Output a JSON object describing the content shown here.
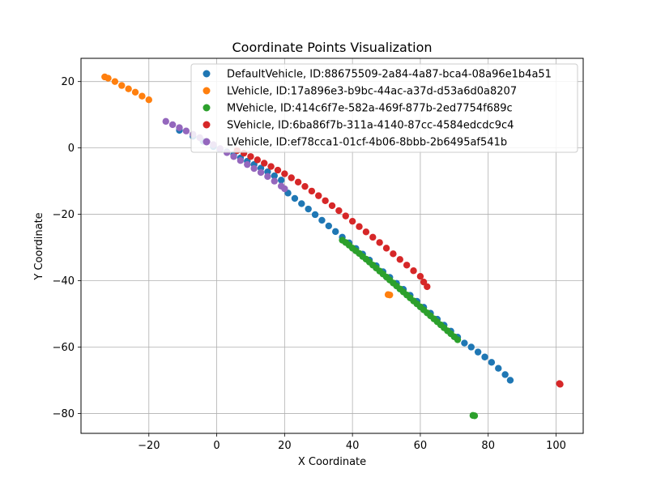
{
  "chart_data": {
    "type": "scatter",
    "title": "Coordinate Points Visualization",
    "xlabel": "X Coordinate",
    "ylabel": "Y Coordinate",
    "xlim": [
      -40,
      108
    ],
    "ylim": [
      -86,
      27
    ],
    "xticks": [
      -20,
      0,
      20,
      40,
      60,
      80,
      100
    ],
    "yticks": [
      20,
      0,
      -20,
      -40,
      -60,
      -80
    ],
    "grid": true,
    "legend_position": "top-right",
    "series": [
      {
        "name": "DefaultVehicle, ID:88675509-2a84-4a87-bca4-08a96e1b4a51",
        "color": "#1f77b4",
        "points": [
          [
            -11,
            5.3
          ],
          [
            -7,
            3.5
          ],
          [
            -4,
            2.0
          ],
          [
            -1,
            0.4
          ],
          [
            1,
            -0.4
          ],
          [
            3,
            -1.2
          ],
          [
            5,
            -2.0
          ],
          [
            7,
            -3.0
          ],
          [
            9,
            -4.0
          ],
          [
            11,
            -5.0
          ],
          [
            13,
            -6.1
          ],
          [
            15,
            -7.2
          ],
          [
            17,
            -8.4
          ],
          [
            19,
            -9.7
          ],
          [
            21,
            -13.6
          ],
          [
            23,
            -15.2
          ],
          [
            25,
            -16.8
          ],
          [
            27,
            -18.4
          ],
          [
            29,
            -20.1
          ],
          [
            31,
            -21.8
          ],
          [
            33,
            -23.5
          ],
          [
            35,
            -25.2
          ],
          [
            37,
            -26.9
          ],
          [
            39,
            -28.6
          ],
          [
            41,
            -30.3
          ],
          [
            43,
            -32.0
          ],
          [
            45,
            -33.8
          ],
          [
            47,
            -35.5
          ],
          [
            49,
            -37.3
          ],
          [
            51,
            -39.0
          ],
          [
            53,
            -40.8
          ],
          [
            55,
            -42.6
          ],
          [
            57,
            -44.4
          ],
          [
            59,
            -46.2
          ],
          [
            61,
            -48.0
          ],
          [
            63,
            -49.8
          ],
          [
            65,
            -51.6
          ],
          [
            67,
            -53.4
          ],
          [
            69,
            -55.2
          ],
          [
            71,
            -57.0
          ],
          [
            73,
            -58.8
          ],
          [
            75,
            -60.0
          ],
          [
            77,
            -61.5
          ],
          [
            79,
            -63.0
          ],
          [
            81,
            -64.6
          ],
          [
            83,
            -66.4
          ],
          [
            85,
            -68.3
          ],
          [
            86.5,
            -70.0
          ]
        ]
      },
      {
        "name": "LVehicle, ID:17a896e3-b9bc-44ac-a37d-d53a6d0a8207",
        "color": "#ff7f0e",
        "points": [
          [
            -33,
            21.4
          ],
          [
            -32,
            21.0
          ],
          [
            -30,
            20.0
          ],
          [
            -28,
            18.8
          ],
          [
            -26,
            17.8
          ],
          [
            -24,
            16.8
          ],
          [
            -22,
            15.6
          ],
          [
            -20,
            14.5
          ],
          [
            50.5,
            -44.2
          ],
          [
            51,
            -44.3
          ]
        ]
      },
      {
        "name": "MVehicle, ID:414c6f7e-582a-469f-877b-2ed7754f689c",
        "color": "#2ca02c",
        "points": [
          [
            37,
            -27.8
          ],
          [
            38,
            -28.5
          ],
          [
            39,
            -29.3
          ],
          [
            40,
            -30.2
          ],
          [
            41,
            -31.0
          ],
          [
            42,
            -31.8
          ],
          [
            43,
            -32.7
          ],
          [
            44,
            -33.5
          ],
          [
            45,
            -34.4
          ],
          [
            46,
            -35.3
          ],
          [
            47,
            -36.2
          ],
          [
            48,
            -37.1
          ],
          [
            49,
            -38.0
          ],
          [
            50,
            -38.9
          ],
          [
            51,
            -39.8
          ],
          [
            52,
            -40.7
          ],
          [
            53,
            -41.6
          ],
          [
            54,
            -42.5
          ],
          [
            55,
            -43.4
          ],
          [
            56,
            -44.3
          ],
          [
            57,
            -45.2
          ],
          [
            58,
            -46.1
          ],
          [
            59,
            -47.0
          ],
          [
            60,
            -47.9
          ],
          [
            61,
            -48.8
          ],
          [
            62,
            -49.7
          ],
          [
            63,
            -50.6
          ],
          [
            64,
            -51.5
          ],
          [
            65,
            -52.4
          ],
          [
            66,
            -53.3
          ],
          [
            67,
            -54.2
          ],
          [
            68,
            -55.1
          ],
          [
            69,
            -56.0
          ],
          [
            70,
            -56.9
          ],
          [
            71,
            -57.8
          ],
          [
            75.5,
            -80.6
          ],
          [
            76,
            -80.7
          ]
        ]
      },
      {
        "name": "SVehicle, ID:6ba86f7b-311a-4140-87cc-4584edcdc9c4",
        "color": "#d62728",
        "points": [
          [
            6,
            -0.8
          ],
          [
            8,
            -1.6
          ],
          [
            10,
            -2.6
          ],
          [
            12,
            -3.6
          ],
          [
            14,
            -4.6
          ],
          [
            16,
            -5.6
          ],
          [
            18,
            -6.7
          ],
          [
            20,
            -7.8
          ],
          [
            22,
            -9.0
          ],
          [
            24,
            -10.3
          ],
          [
            26,
            -11.6
          ],
          [
            28,
            -13.0
          ],
          [
            30,
            -14.4
          ],
          [
            32,
            -15.9
          ],
          [
            34,
            -17.4
          ],
          [
            36,
            -18.9
          ],
          [
            38,
            -20.5
          ],
          [
            40,
            -22.1
          ],
          [
            42,
            -23.7
          ],
          [
            44,
            -25.3
          ],
          [
            46,
            -26.9
          ],
          [
            48,
            -28.5
          ],
          [
            50,
            -30.2
          ],
          [
            52,
            -31.9
          ],
          [
            54,
            -33.6
          ],
          [
            56,
            -35.3
          ],
          [
            58,
            -37.0
          ],
          [
            60,
            -38.7
          ],
          [
            61,
            -40.4
          ],
          [
            62,
            -41.8
          ],
          [
            101,
            -71.0
          ],
          [
            101.2,
            -71.2
          ]
        ]
      },
      {
        "name": "LVehicle, ID:ef78cca1-01cf-4b06-8bbb-2b6495af541b",
        "color": "#9467bd",
        "points": [
          [
            -15,
            8.0
          ],
          [
            -13,
            7.0
          ],
          [
            -11,
            6.1
          ],
          [
            -9,
            5.1
          ],
          [
            -7,
            4.1
          ],
          [
            -5,
            3.1
          ],
          [
            -3,
            2.0
          ],
          [
            -1,
            1.0
          ],
          [
            1,
            -0.2
          ],
          [
            3,
            -1.4
          ],
          [
            5,
            -2.6
          ],
          [
            7,
            -3.8
          ],
          [
            9,
            -5.0
          ],
          [
            11,
            -6.2
          ],
          [
            13,
            -7.4
          ],
          [
            15,
            -8.6
          ],
          [
            17,
            -10.0
          ],
          [
            19,
            -11.5
          ],
          [
            20,
            -12.3
          ]
        ]
      }
    ]
  }
}
